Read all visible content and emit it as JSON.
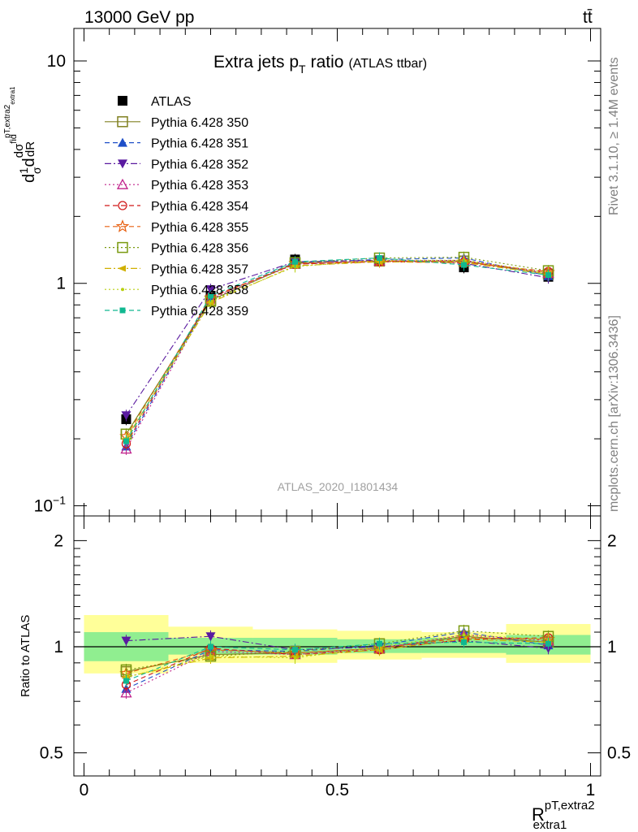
{
  "header": {
    "left": "13000 GeV pp",
    "right": "tt̄"
  },
  "side": {
    "rivet": "Rivet 3.1.10, ≥ 1.4M events",
    "mcplots": "mcplots.cern.ch [arXiv:1306.3436]"
  },
  "watermark": "ATLAS_2020_I1801434",
  "chart_data": [
    {
      "type": "line",
      "title": "Extra jets p",
      "title_sub": "T",
      "title_tail": "ratio",
      "title_small": "(ATLAS ttbar)",
      "ylabel": "dσ/dR",
      "ylabel_full": "1/σ dσ^fid / dR^{pT,extra2}_{extra1}",
      "yscale": "log",
      "ylim": [
        0.09,
        14
      ],
      "xlim": [
        -0.02,
        1.02
      ],
      "ytick_labels": [
        "10",
        "1",
        "10⁻¹"
      ],
      "ytick_values": [
        10,
        1,
        0.1
      ],
      "legend_position": "top-left",
      "x": [
        0.0833,
        0.25,
        0.4167,
        0.5833,
        0.75,
        0.9167
      ],
      "series": [
        {
          "name": "ATLAS",
          "color": "#000000",
          "marker": "square-filled",
          "dash": "none",
          "values": [
            0.245,
            0.88,
            1.28,
            1.27,
            1.18,
            1.07
          ]
        },
        {
          "name": "Pythia 6.428 350",
          "color": "#808020",
          "marker": "square-open",
          "dash": "solid",
          "values": [
            0.21,
            0.84,
            1.23,
            1.26,
            1.26,
            1.1
          ]
        },
        {
          "name": "Pythia 6.428 351",
          "color": "#1f4fc8",
          "marker": "triangle-up-filled",
          "dash": "dashed",
          "values": [
            0.185,
            0.86,
            1.24,
            1.28,
            1.3,
            1.08
          ]
        },
        {
          "name": "Pythia 6.428 352",
          "color": "#5a1aa0",
          "marker": "triangle-down-filled",
          "dash": "dashdot",
          "values": [
            0.255,
            0.94,
            1.25,
            1.27,
            1.23,
            1.06
          ]
        },
        {
          "name": "Pythia 6.428 353",
          "color": "#c0208a",
          "marker": "triangle-up-open",
          "dash": "dotted",
          "values": [
            0.18,
            0.85,
            1.22,
            1.26,
            1.27,
            1.11
          ]
        },
        {
          "name": "Pythia 6.428 354",
          "color": "#d01818",
          "marker": "circle-open",
          "dash": "dashed",
          "values": [
            0.19,
            0.87,
            1.22,
            1.25,
            1.24,
            1.13
          ]
        },
        {
          "name": "Pythia 6.428 355",
          "color": "#e86010",
          "marker": "star-open",
          "dash": "dashed",
          "values": [
            0.205,
            0.86,
            1.23,
            1.26,
            1.25,
            1.12
          ]
        },
        {
          "name": "Pythia 6.428 356",
          "color": "#7a9a10",
          "marker": "square-open",
          "dash": "dotted",
          "values": [
            0.21,
            0.83,
            1.24,
            1.3,
            1.31,
            1.14
          ]
        },
        {
          "name": "Pythia 6.428 357",
          "color": "#d0b000",
          "marker": "triangle-left-filled",
          "dash": "dashdot",
          "values": [
            0.2,
            0.82,
            1.2,
            1.25,
            1.24,
            1.1
          ]
        },
        {
          "name": "Pythia 6.428 358",
          "color": "#b8d010",
          "marker": "dot",
          "dash": "dotted",
          "values": [
            0.2,
            0.83,
            1.19,
            1.27,
            1.27,
            1.12
          ]
        },
        {
          "name": "Pythia 6.428 359",
          "color": "#10b890",
          "marker": "square-filled-small",
          "dash": "dashed",
          "values": [
            0.195,
            0.88,
            1.25,
            1.3,
            1.21,
            1.09
          ]
        }
      ]
    },
    {
      "type": "line",
      "ylabel": "Ratio to ATLAS",
      "xlabel": "R",
      "xlabel_sup": "pT,extra2",
      "xlabel_sub": "extra1",
      "ylim": [
        0.43,
        2.35
      ],
      "yscale": "log",
      "xlim": [
        -0.02,
        1.02
      ],
      "xtick_labels": [
        "0",
        "0.5",
        "1"
      ],
      "xtick_values": [
        0,
        0.5,
        1
      ],
      "ytick_labels": [
        "2",
        "1",
        "0.5"
      ],
      "ytick_values": [
        2,
        1,
        0.5
      ],
      "bands": {
        "edges": [
          0,
          0.1667,
          0.3333,
          0.5,
          0.6667,
          0.8333,
          1.0
        ],
        "inner": [
          [
            0.91,
            1.1
          ],
          [
            0.95,
            1.06
          ],
          [
            0.95,
            1.06
          ],
          [
            0.96,
            1.05
          ],
          [
            0.96,
            1.06
          ],
          [
            0.95,
            1.08
          ]
        ],
        "outer": [
          [
            0.84,
            1.23
          ],
          [
            0.9,
            1.14
          ],
          [
            0.9,
            1.12
          ],
          [
            0.92,
            1.11
          ],
          [
            0.93,
            1.1
          ],
          [
            0.9,
            1.16
          ]
        ],
        "inner_color": "#90ee90",
        "outer_color": "#ffff99"
      },
      "ratios": [
        [
          0.85,
          0.95,
          0.96,
          0.99,
          1.07,
          1.03
        ],
        [
          0.76,
          0.98,
          0.97,
          1.01,
          1.1,
          1.01
        ],
        [
          1.04,
          1.07,
          0.98,
          1.0,
          1.04,
          0.99
        ],
        [
          0.74,
          0.97,
          0.95,
          0.99,
          1.08,
          1.04
        ],
        [
          0.78,
          0.99,
          0.95,
          0.98,
          1.05,
          1.06
        ],
        [
          0.84,
          0.98,
          0.96,
          0.99,
          1.06,
          1.05
        ],
        [
          0.86,
          0.94,
          0.97,
          1.02,
          1.11,
          1.07
        ],
        [
          0.82,
          0.93,
          0.94,
          0.98,
          1.05,
          1.03
        ],
        [
          0.82,
          0.94,
          0.93,
          1.0,
          1.08,
          1.05
        ],
        [
          0.8,
          1.0,
          0.98,
          1.02,
          1.03,
          1.02
        ]
      ]
    }
  ]
}
